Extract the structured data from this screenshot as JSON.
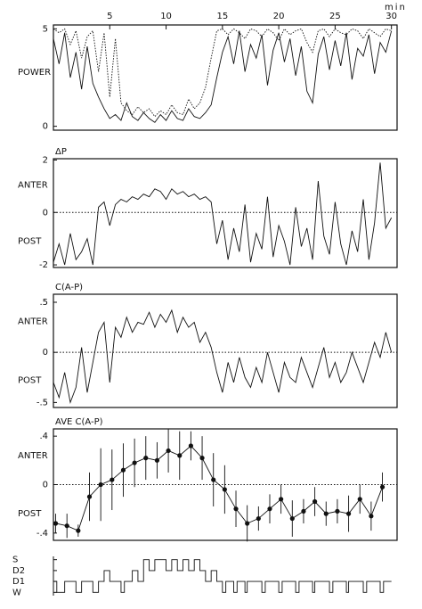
{
  "chart_data": [
    {
      "type": "line",
      "ylabel": "POWER",
      "xlabel": "min",
      "xlim": [
        0,
        30.5
      ],
      "ylim": [
        -0.2,
        5.2
      ],
      "xticks": [
        5,
        10,
        15,
        20,
        25,
        30
      ],
      "yticks": [
        0,
        5
      ],
      "x": [
        0,
        0.5,
        1,
        1.5,
        2,
        2.5,
        3,
        3.5,
        4,
        4.5,
        5,
        5.5,
        6,
        6.5,
        7,
        7.5,
        8,
        8.5,
        9,
        9.5,
        10,
        10.5,
        11,
        11.5,
        12,
        12.5,
        13,
        13.5,
        14,
        14.5,
        15,
        15.5,
        16,
        16.5,
        17,
        17.5,
        18,
        18.5,
        19,
        19.5,
        20,
        20.5,
        21,
        21.5,
        22,
        22.5,
        23,
        23.5,
        24,
        24.5,
        25,
        25.5,
        26,
        26.5,
        27,
        27.5,
        28,
        28.5,
        29,
        29.5,
        30
      ],
      "series": [
        {
          "style": "dotted",
          "values": [
            5,
            4.8,
            5,
            4.2,
            4.9,
            3.5,
            4.6,
            4.9,
            2.8,
            4.8,
            1.5,
            4.5,
            1.2,
            0.8,
            0.6,
            1.0,
            0.7,
            0.9,
            0.5,
            0.8,
            0.6,
            1.1,
            0.7,
            0.6,
            1.4,
            0.9,
            1.2,
            2.0,
            3.5,
            4.9,
            5,
            4.7,
            5,
            4.8,
            4.5,
            5,
            4.9,
            4.6,
            5,
            4.8,
            4.4,
            5,
            4.7,
            4.9,
            5,
            4.3,
            3.8,
            4.9,
            5,
            4.6,
            5,
            4.8,
            4.7,
            5,
            4.9,
            4.5,
            5,
            4.8,
            4.6,
            5,
            4.9
          ]
        },
        {
          "style": "solid",
          "values": [
            4.5,
            3.2,
            4.8,
            2.5,
            3.8,
            1.9,
            4.1,
            2.2,
            1.5,
            0.9,
            0.4,
            0.6,
            0.3,
            1.2,
            0.5,
            0.3,
            0.7,
            0.4,
            0.2,
            0.6,
            0.3,
            0.8,
            0.4,
            0.3,
            0.9,
            0.5,
            0.4,
            0.7,
            1.1,
            2.5,
            3.8,
            4.6,
            3.2,
            4.9,
            2.8,
            4.2,
            3.5,
            4.7,
            2.1,
            3.9,
            4.8,
            3.3,
            4.5,
            2.6,
            4.1,
            1.8,
            1.2,
            3.7,
            4.6,
            2.9,
            4.4,
            3.1,
            4.8,
            2.4,
            4.0,
            3.6,
            4.7,
            2.7,
            4.3,
            3.8,
            4.9
          ]
        }
      ]
    },
    {
      "type": "line",
      "title": "ΔP",
      "y_labels": [
        "ANTER",
        "POST"
      ],
      "reference_line": 0,
      "xlim": [
        0,
        30.5
      ],
      "ylim": [
        -2.1,
        2.05
      ],
      "yticks": [
        -2,
        0,
        2
      ],
      "x": [
        0,
        0.5,
        1,
        1.5,
        2,
        2.5,
        3,
        3.5,
        4,
        4.5,
        5,
        5.5,
        6,
        6.5,
        7,
        7.5,
        8,
        8.5,
        9,
        9.5,
        10,
        10.5,
        11,
        11.5,
        12,
        12.5,
        13,
        13.5,
        14,
        14.5,
        15,
        15.5,
        16,
        16.5,
        17,
        17.5,
        18,
        18.5,
        19,
        19.5,
        20,
        20.5,
        21,
        21.5,
        22,
        22.5,
        23,
        23.5,
        24,
        24.5,
        25,
        25.5,
        26,
        26.5,
        27,
        27.5,
        28,
        28.5,
        29,
        29.5,
        30
      ],
      "series": [
        {
          "style": "solid",
          "values": [
            -1.9,
            -1.2,
            -2,
            -0.8,
            -1.8,
            -1.5,
            -1.0,
            -2,
            0.2,
            0.4,
            -0.5,
            0.3,
            0.5,
            0.4,
            0.6,
            0.5,
            0.7,
            0.6,
            0.9,
            0.8,
            0.5,
            0.9,
            0.7,
            0.8,
            0.6,
            0.7,
            0.5,
            0.6,
            0.4,
            -1.2,
            -0.3,
            -1.8,
            -0.6,
            -1.5,
            0.3,
            -1.9,
            -0.8,
            -1.4,
            0.6,
            -1.7,
            -0.5,
            -1.1,
            -2,
            0.2,
            -1.3,
            -0.6,
            -1.8,
            1.2,
            -0.9,
            -1.6,
            0.4,
            -1.2,
            -2,
            -0.7,
            -1.5,
            0.5,
            -1.8,
            -0.4,
            1.9,
            -0.6,
            -0.2
          ]
        }
      ]
    },
    {
      "type": "line",
      "title": "C(A-P)",
      "y_labels": [
        "ANTER",
        "POST"
      ],
      "reference_line": 0,
      "xlim": [
        0,
        30.5
      ],
      "ylim": [
        -0.55,
        0.58
      ],
      "yticks": [
        {
          "value": -0.5,
          "label": "-.5"
        },
        0,
        {
          "value": 0.5,
          "label": ".5"
        }
      ],
      "x": [
        0,
        0.5,
        1,
        1.5,
        2,
        2.5,
        3,
        3.5,
        4,
        4.5,
        5,
        5.5,
        6,
        6.5,
        7,
        7.5,
        8,
        8.5,
        9,
        9.5,
        10,
        10.5,
        11,
        11.5,
        12,
        12.5,
        13,
        13.5,
        14,
        14.5,
        15,
        15.5,
        16,
        16.5,
        17,
        17.5,
        18,
        18.5,
        19,
        19.5,
        20,
        20.5,
        21,
        21.5,
        22,
        22.5,
        23,
        23.5,
        24,
        24.5,
        25,
        25.5,
        26,
        26.5,
        27,
        27.5,
        28,
        28.5,
        29,
        29.5,
        30
      ],
      "series": [
        {
          "style": "solid",
          "values": [
            -0.3,
            -0.45,
            -0.2,
            -0.5,
            -0.35,
            0.05,
            -0.4,
            -0.1,
            0.2,
            0.3,
            -0.3,
            0.25,
            0.15,
            0.35,
            0.2,
            0.3,
            0.28,
            0.4,
            0.25,
            0.38,
            0.3,
            0.42,
            0.2,
            0.35,
            0.25,
            0.3,
            0.1,
            0.2,
            0.05,
            -0.2,
            -0.4,
            -0.1,
            -0.3,
            -0.05,
            -0.25,
            -0.35,
            -0.15,
            -0.3,
            0.0,
            -0.2,
            -0.4,
            -0.1,
            -0.25,
            -0.3,
            -0.05,
            -0.2,
            -0.35,
            -0.15,
            0.05,
            -0.25,
            -0.1,
            -0.3,
            -0.2,
            0.0,
            -0.15,
            -0.3,
            -0.1,
            0.1,
            -0.05,
            0.2,
            0.0
          ]
        }
      ]
    },
    {
      "type": "errorbar",
      "title": "AVE C(A-P)",
      "y_labels": [
        "ANTER",
        "POST"
      ],
      "reference_line": 0,
      "xlim": [
        0,
        30.5
      ],
      "ylim": [
        -0.46,
        0.46
      ],
      "yticks": [
        {
          "value": -0.4,
          "label": "-.4"
        },
        0,
        {
          "value": 0.4,
          "label": ".4"
        }
      ],
      "x": [
        0.2,
        1.2,
        2.2,
        3.2,
        4.2,
        5.2,
        6.2,
        7.2,
        8.2,
        9.2,
        10.2,
        11.2,
        12.2,
        13.2,
        14.2,
        15.2,
        16.2,
        17.2,
        18.2,
        19.2,
        20.2,
        21.2,
        22.2,
        23.2,
        24.2,
        25.2,
        26.2,
        27.2,
        28.2,
        29.2
      ],
      "series": [
        {
          "style": "solid",
          "values": [
            -0.32,
            -0.34,
            -0.38,
            -0.1,
            0,
            0.04,
            0.12,
            0.18,
            0.22,
            0.2,
            0.28,
            0.24,
            0.32,
            0.22,
            0.04,
            -0.04,
            -0.2,
            -0.32,
            -0.28,
            -0.2,
            -0.12,
            -0.28,
            -0.22,
            -0.14,
            -0.24,
            -0.22,
            -0.24,
            -0.12,
            -0.26,
            -0.02
          ],
          "errors": [
            0.08,
            0.1,
            0.05,
            0.2,
            0.3,
            0.25,
            0.22,
            0.2,
            0.18,
            0.15,
            0.18,
            0.2,
            0.12,
            0.18,
            0.22,
            0.2,
            0.15,
            0.15,
            0.1,
            0.12,
            0.12,
            0.15,
            0.1,
            0.12,
            0.1,
            0.1,
            0.15,
            0.12,
            0.12,
            0.12
          ]
        }
      ]
    },
    {
      "type": "step",
      "xlim": [
        0,
        30.5
      ],
      "ylim": [
        -0.3,
        3.3
      ],
      "yticks": [
        {
          "value": 0,
          "label": "W"
        },
        {
          "value": 1,
          "label": "D1"
        },
        {
          "value": 2,
          "label": "D2"
        },
        {
          "value": 3,
          "label": "S"
        }
      ],
      "x": [
        0,
        0.3,
        1,
        2,
        2.5,
        3.5,
        4,
        4.5,
        5,
        6,
        6.3,
        7,
        7.5,
        8,
        8.5,
        9,
        10,
        10.5,
        11,
        11.5,
        12,
        12.5,
        13,
        13.5,
        14,
        14.5,
        15,
        15.3,
        16,
        16.3,
        17,
        17.2,
        18.5,
        18.8,
        20,
        20.3,
        21.5,
        21.8,
        23,
        23.2,
        24.5,
        24.8,
        26,
        26.2,
        27.5,
        27.8,
        29,
        29.3,
        30
      ],
      "series": [
        {
          "style": "solid",
          "values": [
            1,
            0,
            1,
            0,
            1,
            0,
            1,
            2,
            1,
            0,
            1,
            2,
            1,
            3,
            2,
            3,
            2,
            3,
            2,
            3,
            2,
            3,
            2,
            1,
            2,
            1,
            0,
            1,
            0,
            1,
            0,
            1,
            0,
            1,
            0,
            1,
            0,
            1,
            0,
            1,
            0,
            1,
            0,
            1,
            0,
            1,
            0,
            1,
            1
          ]
        }
      ]
    }
  ]
}
